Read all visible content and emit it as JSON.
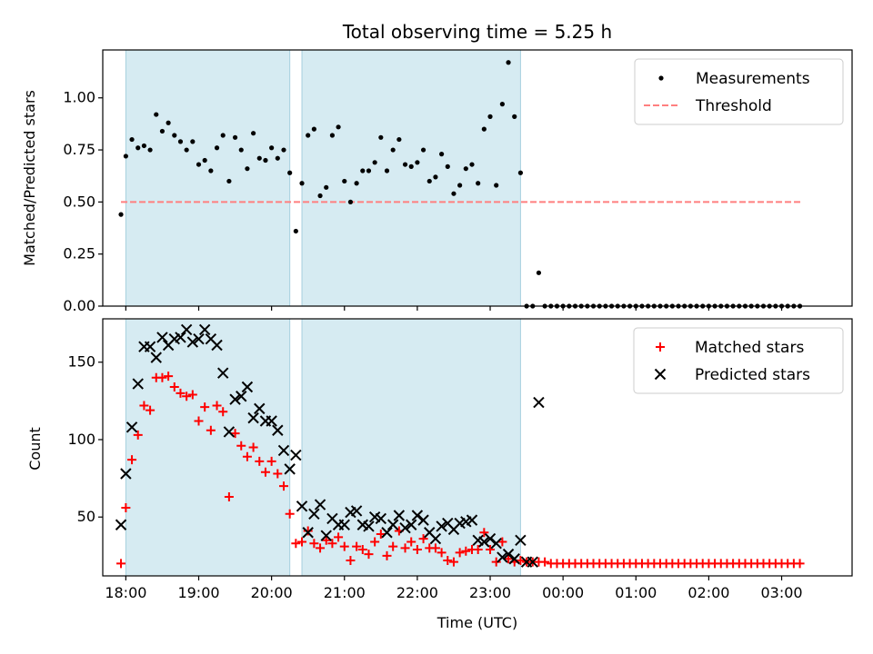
{
  "chart_data": [
    {
      "type": "scatter",
      "title": "Total observing time = 5.25 h",
      "xlabel": "",
      "ylabel": "Matched/Predicted stars",
      "ylim": [
        0,
        1.23
      ],
      "yticks": [
        0.0,
        0.25,
        0.5,
        0.75,
        1.0
      ],
      "ytick_labels": [
        "0.00",
        "0.25",
        "0.50",
        "0.75",
        "1.00"
      ],
      "xlim": [
        "17:41",
        "03:58"
      ],
      "grid": false,
      "legend_position": "top-right",
      "shaded_intervals": [
        [
          "18:00",
          "20:15"
        ],
        [
          "20:25",
          "23:25"
        ]
      ],
      "threshold": {
        "name": "Threshold",
        "value": 0.5,
        "x_start": "17:56",
        "x_end": "03:16",
        "color": "#ff7f7f"
      },
      "series": [
        {
          "name": "Measurements",
          "color": "#000000",
          "x": [
            "17:56",
            "18:00",
            "18:05",
            "18:10",
            "18:15",
            "18:20",
            "18:25",
            "18:30",
            "18:35",
            "18:40",
            "18:45",
            "18:50",
            "18:55",
            "19:00",
            "19:05",
            "19:10",
            "19:15",
            "19:20",
            "19:25",
            "19:30",
            "19:35",
            "19:40",
            "19:45",
            "19:50",
            "19:55",
            "20:00",
            "20:05",
            "20:10",
            "20:15",
            "20:20",
            "20:25",
            "20:30",
            "20:35",
            "20:40",
            "20:45",
            "20:50",
            "20:55",
            "21:00",
            "21:05",
            "21:10",
            "21:15",
            "21:20",
            "21:25",
            "21:30",
            "21:35",
            "21:40",
            "21:45",
            "21:50",
            "21:55",
            "22:00",
            "22:05",
            "22:10",
            "22:15",
            "22:20",
            "22:25",
            "22:30",
            "22:35",
            "22:40",
            "22:45",
            "22:50",
            "22:55",
            "23:00",
            "23:05",
            "23:10",
            "23:15",
            "23:20",
            "23:25",
            "23:30",
            "23:35",
            "23:40",
            "23:45",
            "23:50",
            "23:55",
            "00:00",
            "00:05",
            "00:10",
            "00:15",
            "00:20",
            "00:25",
            "00:30",
            "00:35",
            "00:40",
            "00:45",
            "00:50",
            "00:55",
            "01:00",
            "01:05",
            "01:10",
            "01:15",
            "01:20",
            "01:25",
            "01:30",
            "01:35",
            "01:40",
            "01:45",
            "01:50",
            "01:55",
            "02:00",
            "02:05",
            "02:10",
            "02:15",
            "02:20",
            "02:25",
            "02:30",
            "02:35",
            "02:40",
            "02:45",
            "02:50",
            "02:55",
            "03:00",
            "03:05",
            "03:10",
            "03:15"
          ],
          "y": [
            0.44,
            0.72,
            0.8,
            0.76,
            0.77,
            0.75,
            0.92,
            0.84,
            0.88,
            0.82,
            0.79,
            0.75,
            0.79,
            0.68,
            0.7,
            0.65,
            0.76,
            0.82,
            0.6,
            0.81,
            0.75,
            0.66,
            0.83,
            0.71,
            0.7,
            0.76,
            0.71,
            0.75,
            0.64,
            0.36,
            0.59,
            0.82,
            0.85,
            0.53,
            0.57,
            0.82,
            0.86,
            0.6,
            0.5,
            0.59,
            0.65,
            0.65,
            0.69,
            0.81,
            0.65,
            0.75,
            0.8,
            0.68,
            0.67,
            0.69,
            0.75,
            0.6,
            0.62,
            0.73,
            0.67,
            0.54,
            0.58,
            0.66,
            0.68,
            0.59,
            0.85,
            0.91,
            0.58,
            0.97,
            1.17,
            0.91,
            0.64,
            0.0,
            0.0,
            0.16,
            0.0,
            0.0,
            0.0,
            0.0,
            0.0,
            0.0,
            0.0,
            0.0,
            0.0,
            0.0,
            0.0,
            0.0,
            0.0,
            0.0,
            0.0,
            0.0,
            0.0,
            0.0,
            0.0,
            0.0,
            0.0,
            0.0,
            0.0,
            0.0,
            0.0,
            0.0,
            0.0,
            0.0,
            0.0,
            0.0,
            0.0,
            0.0,
            0.0,
            0.0,
            0.0,
            0.0,
            0.0,
            0.0,
            0.0,
            0.0,
            0.0,
            0.0,
            0.0
          ]
        }
      ]
    },
    {
      "type": "scatter",
      "title": "",
      "xlabel": "Time (UTC)",
      "ylabel": "Count",
      "ylim": [
        12,
        178
      ],
      "yticks": [
        50,
        100,
        150
      ],
      "ytick_labels": [
        "50",
        "100",
        "150"
      ],
      "xlim": [
        "17:41",
        "03:58"
      ],
      "xticks": [
        "18:00",
        "19:00",
        "20:00",
        "21:00",
        "22:00",
        "23:00",
        "00:00",
        "01:00",
        "02:00",
        "03:00"
      ],
      "grid": false,
      "legend_position": "top-right",
      "shaded_intervals": [
        [
          "18:00",
          "20:15"
        ],
        [
          "20:25",
          "23:25"
        ]
      ],
      "series": [
        {
          "name": "Matched stars",
          "marker": "+",
          "color": "#ff0000",
          "x": [
            "17:56",
            "18:00",
            "18:05",
            "18:10",
            "18:15",
            "18:20",
            "18:25",
            "18:30",
            "18:35",
            "18:40",
            "18:45",
            "18:50",
            "18:55",
            "19:00",
            "19:05",
            "19:10",
            "19:15",
            "19:20",
            "19:25",
            "19:30",
            "19:35",
            "19:40",
            "19:45",
            "19:50",
            "19:55",
            "20:00",
            "20:05",
            "20:10",
            "20:15",
            "20:20",
            "20:25",
            "20:30",
            "20:35",
            "20:40",
            "20:45",
            "20:50",
            "20:55",
            "21:00",
            "21:05",
            "21:10",
            "21:15",
            "21:20",
            "21:25",
            "21:30",
            "21:35",
            "21:40",
            "21:45",
            "21:50",
            "21:55",
            "22:00",
            "22:05",
            "22:10",
            "22:15",
            "22:20",
            "22:25",
            "22:30",
            "22:35",
            "22:40",
            "22:45",
            "22:50",
            "22:55",
            "23:00",
            "23:05",
            "23:10",
            "23:15",
            "23:20",
            "23:25",
            "23:30",
            "23:35",
            "23:40",
            "23:45",
            "23:50",
            "23:55",
            "00:00",
            "00:05",
            "00:10",
            "00:15",
            "00:20",
            "00:25",
            "00:30",
            "00:35",
            "00:40",
            "00:45",
            "00:50",
            "00:55",
            "01:00",
            "01:05",
            "01:10",
            "01:15",
            "01:20",
            "01:25",
            "01:30",
            "01:35",
            "01:40",
            "01:45",
            "01:50",
            "01:55",
            "02:00",
            "02:05",
            "02:10",
            "02:15",
            "02:20",
            "02:25",
            "02:30",
            "02:35",
            "02:40",
            "02:45",
            "02:50",
            "02:55",
            "03:00",
            "03:05",
            "03:10",
            "03:15"
          ],
          "y": [
            20,
            56,
            87,
            103,
            122,
            119,
            140,
            140,
            141,
            134,
            130,
            128,
            129,
            112,
            121,
            106,
            122,
            118,
            63,
            104,
            96,
            89,
            95,
            86,
            79,
            86,
            78,
            70,
            52,
            33,
            34,
            41,
            33,
            30,
            35,
            33,
            37,
            31,
            22,
            31,
            29,
            26,
            34,
            39,
            25,
            31,
            41,
            30,
            34,
            29,
            36,
            30,
            30,
            27,
            22,
            21,
            27,
            28,
            29,
            29,
            40,
            29,
            21,
            34,
            23,
            21,
            22,
            21,
            21,
            21,
            21,
            20,
            20,
            20,
            20,
            20,
            20,
            20,
            20,
            20,
            20,
            20,
            20,
            20,
            20,
            20,
            20,
            20,
            20,
            20,
            20,
            20,
            20,
            20,
            20,
            20,
            20,
            20,
            20,
            20,
            20,
            20,
            20,
            20,
            20,
            20,
            20,
            20,
            20,
            20,
            20,
            20,
            20
          ]
        },
        {
          "name": "Predicted stars",
          "marker": "x",
          "color": "#000000",
          "x": [
            "17:56",
            "18:00",
            "18:05",
            "18:10",
            "18:15",
            "18:20",
            "18:25",
            "18:30",
            "18:35",
            "18:40",
            "18:45",
            "18:50",
            "18:55",
            "19:00",
            "19:05",
            "19:10",
            "19:15",
            "19:20",
            "19:25",
            "19:30",
            "19:35",
            "19:40",
            "19:45",
            "19:50",
            "19:55",
            "20:00",
            "20:05",
            "20:10",
            "20:15",
            "20:20",
            "20:25",
            "20:30",
            "20:35",
            "20:40",
            "20:45",
            "20:50",
            "20:55",
            "21:00",
            "21:05",
            "21:10",
            "21:15",
            "21:20",
            "21:25",
            "21:30",
            "21:35",
            "21:40",
            "21:45",
            "21:50",
            "21:55",
            "22:00",
            "22:05",
            "22:10",
            "22:15",
            "22:20",
            "22:25",
            "22:30",
            "22:35",
            "22:40",
            "22:45",
            "22:50",
            "22:55",
            "23:00",
            "23:05",
            "23:10",
            "23:15",
            "23:20",
            "23:25",
            "23:30",
            "23:35",
            "23:40"
          ],
          "y": [
            45,
            78,
            108,
            136,
            160,
            160,
            153,
            166,
            161,
            165,
            166,
            171,
            163,
            165,
            171,
            165,
            161,
            143,
            105,
            126,
            128,
            134,
            114,
            120,
            112,
            112,
            106,
            93,
            81,
            90,
            57,
            40,
            52,
            58,
            38,
            49,
            45,
            45,
            53,
            54,
            45,
            44,
            50,
            49,
            40,
            45,
            51,
            43,
            45,
            51,
            48,
            40,
            36,
            44,
            46,
            42,
            46,
            47,
            48,
            35,
            34,
            36,
            33,
            24,
            26,
            23,
            35,
            21,
            21,
            124
          ]
        }
      ]
    }
  ]
}
